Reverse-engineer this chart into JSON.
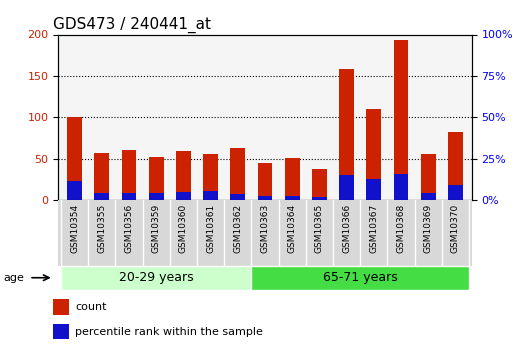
{
  "title": "GDS473 / 240441_at",
  "samples": [
    "GSM10354",
    "GSM10355",
    "GSM10356",
    "GSM10359",
    "GSM10360",
    "GSM10361",
    "GSM10362",
    "GSM10363",
    "GSM10364",
    "GSM10365",
    "GSM10366",
    "GSM10367",
    "GSM10368",
    "GSM10369",
    "GSM10370"
  ],
  "count": [
    100,
    57,
    60,
    52,
    59,
    56,
    63,
    45,
    51,
    38,
    158,
    110,
    193,
    56,
    82
  ],
  "percentile": [
    23,
    8,
    9,
    9,
    10,
    11,
    7,
    5,
    5,
    4,
    30,
    25,
    32,
    9,
    18
  ],
  "group1_label": "20-29 years",
  "group2_label": "65-71 years",
  "group1_count": 7,
  "group2_count": 8,
  "age_label": "age",
  "left_ylim": [
    0,
    200
  ],
  "right_ylim": [
    0,
    100
  ],
  "left_yticks": [
    0,
    50,
    100,
    150,
    200
  ],
  "right_yticks": [
    0,
    25,
    50,
    75,
    100
  ],
  "right_yticklabels": [
    "0%",
    "25%",
    "50%",
    "75%",
    "100%"
  ],
  "bar_color_count": "#cc2200",
  "bar_color_percentile": "#1111cc",
  "group1_bg": "#ccffcc",
  "group2_bg": "#44dd44",
  "plot_bg": "#f5f5f5",
  "legend_count": "count",
  "legend_percentile": "percentile rank within the sample",
  "bar_width": 0.55,
  "title_fontsize": 11,
  "tick_fontsize": 8,
  "group_label_fontsize": 9,
  "sample_fontsize": 6.5
}
